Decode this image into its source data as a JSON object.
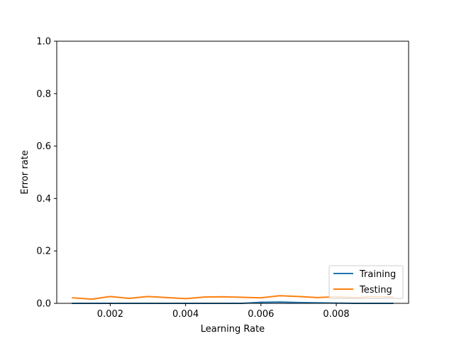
{
  "chart_data": {
    "type": "line",
    "xlabel": "Learning Rate",
    "ylabel": "Error rate",
    "xlim": [
      0.00058,
      0.00992
    ],
    "ylim": [
      0.0,
      1.0
    ],
    "x_ticks": [
      0.002,
      0.004,
      0.006,
      0.008
    ],
    "x_tick_labels": [
      "0.002",
      "0.004",
      "0.006",
      "0.008"
    ],
    "y_ticks": [
      0.0,
      0.2,
      0.4,
      0.6,
      0.8,
      1.0
    ],
    "y_tick_labels": [
      "0.0",
      "0.2",
      "0.4",
      "0.6",
      "0.8",
      "1.0"
    ],
    "grid": false,
    "legend_position": "lower right",
    "x": [
      0.001,
      0.0015,
      0.002,
      0.0025,
      0.003,
      0.0035,
      0.004,
      0.0045,
      0.005,
      0.0055,
      0.006,
      0.0065,
      0.007,
      0.0075,
      0.008,
      0.0085,
      0.009,
      0.0095
    ],
    "series": [
      {
        "name": "Training",
        "color": "#1f77b4",
        "values": [
          0.0,
          0.0,
          0.0,
          0.0,
          0.0,
          0.0,
          0.0,
          0.0,
          0.0,
          0.0,
          0.004,
          0.005,
          0.003,
          0.002,
          0.001,
          0.0,
          0.0,
          0.0
        ]
      },
      {
        "name": "Testing",
        "color": "#ff7f0e",
        "values": [
          0.021,
          0.016,
          0.026,
          0.019,
          0.026,
          0.022,
          0.018,
          0.024,
          0.025,
          0.023,
          0.021,
          0.029,
          0.026,
          0.022,
          0.025,
          0.022,
          0.026,
          0.024
        ]
      }
    ]
  }
}
